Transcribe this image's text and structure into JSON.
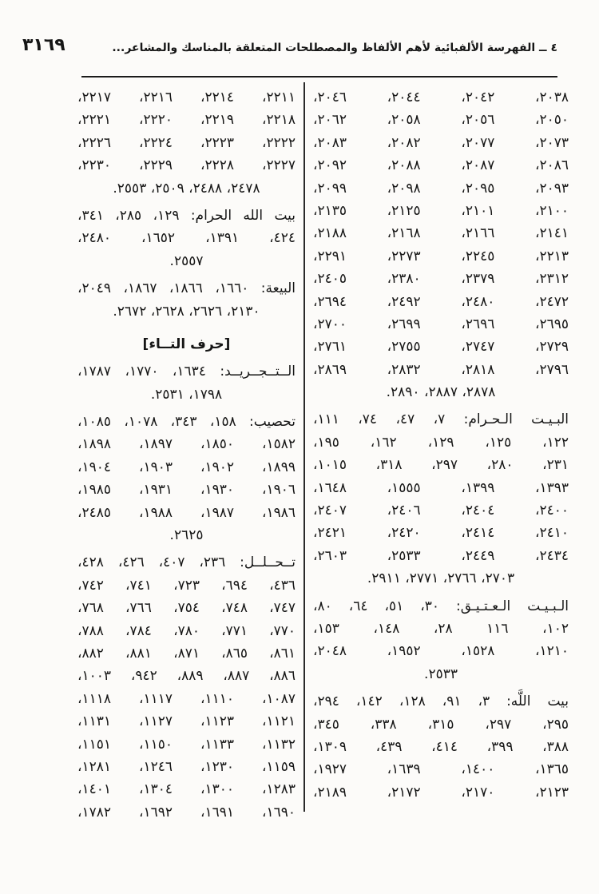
{
  "page": {
    "number": "٣١٦٩",
    "header_title": "٤ ــ الفهرسة الألفبائية لأهم الألفاظ والمصطلحات المتعلقة بالمناسك والمشاعر..."
  },
  "columns": {
    "right": [
      {
        "name": "continued-number-list",
        "lines": [
          {
            "t": "٢٠٣٨، ٢٠٤٢، ٢٠٤٤، ٢٠٤٦،",
            "a": "j"
          },
          {
            "t": "٢٠٥٠، ٢٠٥٦، ٢٠٥٨، ٢٠٦٢،",
            "a": "j"
          },
          {
            "t": "٢٠٧٣، ٢٠٧٧، ٢٠٨٢، ٢٠٨٣،",
            "a": "j"
          },
          {
            "t": "٢٠٨٦، ٢٠٨٧، ٢٠٨٨، ٢٠٩٢،",
            "a": "j"
          },
          {
            "t": "٢٠٩٣، ٢٠٩٥، ٢٠٩٨، ٢٠٩٩،",
            "a": "j"
          },
          {
            "t": "٢١٠٠، ٢١٠١، ٢١٢٥، ٢١٣٥،",
            "a": "j"
          },
          {
            "t": "٢١٤١، ٢١٦٦، ٢١٦٨، ٢١٨٨،",
            "a": "j"
          },
          {
            "t": "٢٢١٣، ٢٢٤٥، ٢٢٧٣، ٢٢٩١،",
            "a": "j"
          },
          {
            "t": "٢٣١٢، ٢٣٧٩، ٢٣٨٠، ٢٤٠٥،",
            "a": "j"
          },
          {
            "t": "٢٤٧٢، ٢٤٨٠، ٢٤٩٢، ٢٦٩٤،",
            "a": "j"
          },
          {
            "t": "٢٦٩٥، ٢٦٩٦، ٢٦٩٩، ٢٧٠٠،",
            "a": "j"
          },
          {
            "t": "٢٧٢٩، ٢٧٤٧، ٢٧٥٥، ٢٧٦١،",
            "a": "j"
          },
          {
            "t": "٢٧٩٦، ٢٨١٨، ٢٨٣٢، ٢٨٦٩،",
            "a": "j"
          },
          {
            "t": "٢٨٧٨، ٢٨٨٧، ٢٨٩٠.",
            "a": "c"
          }
        ]
      },
      {
        "name": "entry-al-bayt-al-haram",
        "term": "البيت الحرام",
        "lines": [
          {
            "t": "البـيـت الـحـرام: ٧، ٤٧، ٧٤، ١١١،",
            "a": "j"
          },
          {
            "t": "١٢٢، ١٢٥، ١٢٩، ١٦٢، ١٩٥،",
            "a": "j"
          },
          {
            "t": "٢٣١، ٢٨٠، ٢٩٧، ٣١٨، ١٠١٥،",
            "a": "j"
          },
          {
            "t": "١٣٩٣، ١٣٩٩، ١٥٥٥، ١٦٤٨،",
            "a": "j"
          },
          {
            "t": "٢٤٠٠، ٢٤٠٤، ٢٤٠٦، ٢٤٠٧،",
            "a": "j"
          },
          {
            "t": "٢٤١٠، ٢٤١٤، ٢٤٢٠، ٢٤٢١،",
            "a": "j"
          },
          {
            "t": "٢٤٣٤، ٢٤٤٩، ٢٥٣٣، ٢٦٠٣،",
            "a": "j"
          },
          {
            "t": "٢٧٠٣، ٢٧٦٦، ٢٧٧١، ٢٩١١.",
            "a": "c"
          }
        ]
      },
      {
        "name": "entry-al-bayt-al-atiq",
        "term": "البيت العتيق",
        "lines": [
          {
            "t": "الـبـيـت الـعـتـيـق: ٣٠، ٥١، ٦٤، ٨٠،",
            "a": "j"
          },
          {
            "t": "١٠٢، ١١٦ ٢٨، ١٤٨، ١٥٣،",
            "a": "j"
          },
          {
            "t": "١٢١٠، ١٥٢٨، ١٩٥٢، ٢٠٤٨،",
            "a": "j"
          },
          {
            "t": "٢٥٣٣.",
            "a": "c"
          }
        ]
      },
      {
        "name": "entry-bayt-allah",
        "term": "بيت اللَّه",
        "lines": [
          {
            "t": "بيت اللَّه: ٣، ٩١، ١٢٨، ١٤٢، ٢٩٤،",
            "a": "j"
          },
          {
            "t": "٢٩٥، ٢٩٧، ٣١٥، ٣٣٨، ٣٤٥،",
            "a": "j"
          },
          {
            "t": "٣٨٨، ٣٩٩، ٤١٤، ٤٣٩، ١٣٠٩،",
            "a": "j"
          },
          {
            "t": "١٣٦٥، ١٤٠٠، ١٦٣٩، ١٩٢٧،",
            "a": "j"
          },
          {
            "t": "٢١٢٣، ٢١٧٠، ٢١٧٢، ٢١٨٩،",
            "a": "j"
          }
        ]
      }
    ],
    "left": [
      {
        "name": "continued-number-list",
        "lines": [
          {
            "t": "٢٢١١، ٢٢١٤، ٢٢١٦، ٢٢١٧،",
            "a": "j"
          },
          {
            "t": "٢٢١٨، ٢٢١٩، ٢٢٢٠، ٢٢٢١،",
            "a": "j"
          },
          {
            "t": "٢٢٢٢، ٢٢٢٣، ٢٢٢٤، ٢٢٢٦،",
            "a": "j"
          },
          {
            "t": "٢٢٢٧، ٢٢٢٨، ٢٢٢٩، ٢٢٣٠،",
            "a": "j"
          },
          {
            "t": "٢٤٧٨، ٢٤٨٨، ٢٥٠٩، ٢٥٥٣.",
            "a": "c"
          }
        ]
      },
      {
        "name": "entry-bayt-allah-al-haram",
        "term": "بيت الله الحرام",
        "lines": [
          {
            "t": "بيت الله الحرام: ١٢٩، ٢٨٥، ٣٤١،",
            "a": "j"
          },
          {
            "t": "٤٢٤، ١٣٩١، ١٦٥٢، ٢٤٨٠،",
            "a": "j"
          },
          {
            "t": "٢٥٥٧.",
            "a": "c"
          }
        ]
      },
      {
        "name": "entry-al-bayah",
        "term": "البيعة",
        "lines": [
          {
            "t": "البيعة: ١٦٦٠، ١٨٦٦، ١٨٦٧، ٢٠٤٩،",
            "a": "j"
          },
          {
            "t": "٢١٣٠، ٢٦٢٦، ٢٦٢٨، ٢٦٧٢.",
            "a": "c"
          }
        ]
      },
      {
        "name": "section-harf-al-taa",
        "section": true,
        "lines": [
          {
            "t": "[حرف التــاء]",
            "a": "c"
          }
        ]
      },
      {
        "name": "entry-al-tajrid",
        "term": "التجريد",
        "lines": [
          {
            "t": "الــتــجــريــد: ١٦٣٤، ١٧٧٠، ١٧٨٧،",
            "a": "j"
          },
          {
            "t": "١٧٩٨، ٢٥٣١.",
            "a": "c"
          }
        ]
      },
      {
        "name": "entry-tahsib",
        "term": "تحصيب",
        "lines": [
          {
            "t": "تحصيب: ١٥٨، ٣٤٣، ١٠٧٨، ١٠٨٥،",
            "a": "j"
          },
          {
            "t": "١٥٨٢، ١٨٥٠، ١٨٩٧، ١٨٩٨،",
            "a": "j"
          },
          {
            "t": "١٨٩٩، ١٩٠٢، ١٩٠٣، ١٩٠٤،",
            "a": "j"
          },
          {
            "t": "١٩٠٦، ١٩٣٠، ١٩٣١، ١٩٨٥،",
            "a": "j"
          },
          {
            "t": "١٩٨٦، ١٩٨٧، ١٩٨٨، ٢٤٨٥،",
            "a": "j"
          },
          {
            "t": "٢٦٢٥.",
            "a": "c"
          }
        ]
      },
      {
        "name": "entry-tahallul",
        "term": "تحلل",
        "lines": [
          {
            "t": "تــحــلــل: ٢٣٦، ٤٠٧، ٤٢٦، ٤٢٨،",
            "a": "j"
          },
          {
            "t": "٤٣٦، ٦٩٤، ٧٢٣، ٧٤١، ٧٤٢،",
            "a": "j"
          },
          {
            "t": "٧٤٧، ٧٤٨، ٧٥٤، ٧٦٦، ٧٦٨،",
            "a": "j"
          },
          {
            "t": "٧٧٠، ٧٧١، ٧٨٠، ٧٨٤، ٧٨٨،",
            "a": "j"
          },
          {
            "t": "٨٦١، ٨٦٥، ٨٧١، ٨٨١، ٨٨٢،",
            "a": "j"
          },
          {
            "t": "٨٨٦، ٨٨٧، ٨٨٩، ٩٤٢، ١٠٠٣،",
            "a": "j"
          },
          {
            "t": "١٠٨٧، ١١١٠، ١١١٧، ١١١٨،",
            "a": "j"
          },
          {
            "t": "١١٢١، ١١٢٣، ١١٢٧، ١١٣١،",
            "a": "j"
          },
          {
            "t": "١١٣٢، ١١٣٣، ١١٥٠، ١١٥١،",
            "a": "j"
          },
          {
            "t": "١١٥٩، ١٢٣٠، ١٢٤٦، ١٢٨١،",
            "a": "j"
          },
          {
            "t": "١٢٨٣، ١٣٠٠، ١٣٠٤، ١٤٠١،",
            "a": "j"
          },
          {
            "t": "١٦٩٠، ١٦٩١، ١٦٩٢، ١٧٨٢،",
            "a": "j"
          }
        ]
      }
    ]
  }
}
